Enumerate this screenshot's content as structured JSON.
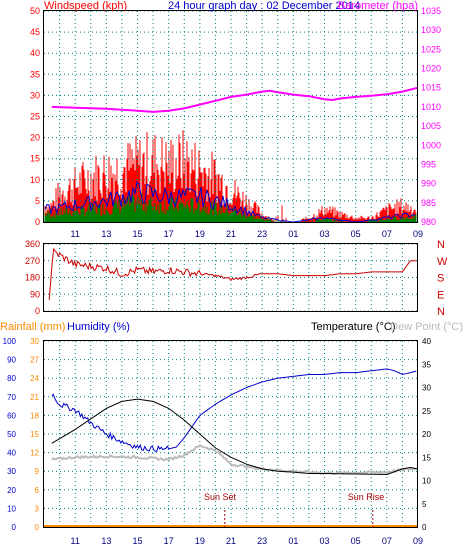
{
  "header": {
    "title": "24 hour graph day : 02 December 2014",
    "wind_label": "Windspeed (kph)",
    "baro_label": "Barometer (hpa)",
    "rain_label": "Rainfall (mm)",
    "hum_label": "Humidity (%)",
    "temp_label": "Temperature (°C)",
    "dew_label": "Dew Point (°C)"
  },
  "colors": {
    "wind": "#ff0000",
    "gust_bg": "#ff0000",
    "avg_wind": "#0000cc",
    "wind_low": "#008000",
    "baro": "#ff00ff",
    "wdir": "#cc0000",
    "temp": "#000000",
    "hum": "#0000cc",
    "dew": "#bbbbbb",
    "rain": "#ff8800",
    "grid": "#008080",
    "bg": "#ffffff"
  },
  "x_ticks": [
    "11",
    "13",
    "15",
    "17",
    "19",
    "21",
    "23",
    "01",
    "03",
    "05",
    "07",
    "09"
  ],
  "x_ticks_bottom": [
    "11",
    "13",
    "15",
    "17",
    "19",
    "21",
    "23",
    "01",
    "03",
    "05",
    "07",
    "09"
  ],
  "sun": {
    "set_label": "Sun Set",
    "set_x": "20.6",
    "rise_label": "Sun Rise",
    "rise_x": "06.1"
  },
  "chart_data": [
    {
      "type": "line",
      "title": "24 hour graph day : 02 December 2014",
      "x_range": [
        "09:00",
        "09:00"
      ],
      "y_left": {
        "label": "Windspeed (kph)",
        "range": [
          0,
          50
        ],
        "ticks": [
          0,
          5,
          10,
          15,
          20,
          25,
          30,
          35,
          40,
          45,
          50
        ]
      },
      "y_right": {
        "label": "Barometer (hpa)",
        "range": [
          980,
          1035
        ],
        "ticks": [
          980,
          985,
          990,
          995,
          1000,
          1005,
          1010,
          1015,
          1020,
          1025,
          1030,
          1035
        ]
      },
      "series": [
        {
          "name": "Barometer (hpa)",
          "axis": "right",
          "x": [
            "09:30",
            "11:00",
            "13:00",
            "15:00",
            "16:00",
            "17:00",
            "18:00",
            "19:00",
            "20:00",
            "21:00",
            "22:00",
            "23:00",
            "23:30",
            "00:00",
            "01:00",
            "02:00",
            "03:00",
            "03:30",
            "04:00",
            "05:00",
            "06:00",
            "07:00",
            "08:00",
            "09:00"
          ],
          "values": [
            1010.0,
            1009.8,
            1009.5,
            1009.0,
            1008.7,
            1009.0,
            1009.6,
            1010.6,
            1011.6,
            1012.6,
            1013.2,
            1014.0,
            1014.2,
            1013.8,
            1013.2,
            1012.8,
            1012.0,
            1011.8,
            1012.2,
            1012.6,
            1012.9,
            1013.3,
            1014.0,
            1015.0
          ]
        },
        {
          "name": "Windspeed (kph)",
          "axis": "left",
          "x": [
            "09:30",
            "10:00",
            "11:00",
            "12:00",
            "13:00",
            "14:00",
            "15:00",
            "16:00",
            "17:00",
            "18:00",
            "19:00",
            "20:00",
            "21:00",
            "22:00",
            "23:00",
            "00:00",
            "01:00",
            "02:00",
            "03:00",
            "04:00",
            "05:00",
            "06:00",
            "07:00",
            "08:00",
            "09:00"
          ],
          "values": [
            4,
            7,
            9,
            11,
            12,
            13,
            14,
            15,
            14,
            15,
            13,
            11,
            8,
            5,
            2,
            0,
            0,
            1,
            3,
            2,
            1,
            1,
            3,
            4,
            3
          ]
        },
        {
          "name": "Average windspeed (kph)",
          "axis": "left",
          "x": [
            "09:30",
            "11:00",
            "13:00",
            "15:00",
            "17:00",
            "19:00",
            "21:00",
            "23:00",
            "01:00",
            "03:00",
            "05:00",
            "07:00",
            "09:00"
          ],
          "values": [
            3,
            4,
            5,
            7,
            6,
            6,
            4,
            1,
            0,
            1,
            0,
            1,
            2
          ]
        }
      ]
    },
    {
      "type": "line",
      "y_left": {
        "range": [
          0,
          360
        ],
        "ticks": [
          0,
          90,
          180,
          270,
          360
        ]
      },
      "y_right_labels": [
        "N",
        "W",
        "S",
        "E",
        "N"
      ],
      "series": [
        {
          "name": "Wind direction",
          "x": [
            "09:20",
            "09:35",
            "10:00",
            "11:00",
            "12:00",
            "13:00",
            "14:00",
            "15:00",
            "16:00",
            "17:00",
            "18:00",
            "19:00",
            "20:00",
            "21:00",
            "22:00",
            "23:00",
            "00:00",
            "01:00",
            "02:00",
            "03:00",
            "04:00",
            "05:00",
            "06:00",
            "07:00",
            "08:00",
            "08:30",
            "09:00"
          ],
          "values": [
            60,
            320,
            300,
            250,
            240,
            230,
            200,
            220,
            210,
            220,
            210,
            200,
            190,
            170,
            180,
            200,
            200,
            190,
            190,
            190,
            200,
            200,
            210,
            210,
            210,
            270,
            270
          ]
        }
      ]
    },
    {
      "type": "line",
      "y_rain": {
        "label": "Rainfall (mm)",
        "range": [
          0,
          30
        ],
        "ticks": [
          0,
          3,
          6,
          9,
          12,
          15,
          18,
          21,
          24,
          27,
          30
        ]
      },
      "y_hum": {
        "label": "Humidity (%)",
        "range": [
          0,
          100
        ],
        "ticks": [
          0,
          10,
          20,
          30,
          40,
          50,
          60,
          70,
          80,
          90,
          100
        ]
      },
      "y_temp": {
        "label": "Temperature (°C)",
        "range": [
          0,
          40
        ],
        "ticks": [
          0,
          5,
          10,
          15,
          20,
          25,
          30,
          35,
          40
        ]
      },
      "series": [
        {
          "name": "Temperature (°C)",
          "axis": "temp",
          "x": [
            "09:30",
            "11:00",
            "13:00",
            "14:00",
            "15:00",
            "16:00",
            "17:00",
            "18:00",
            "19:00",
            "20:00",
            "21:00",
            "22:00",
            "23:00",
            "00:00",
            "01:00",
            "02:00",
            "03:00",
            "05:00",
            "07:00",
            "08:00",
            "08:30",
            "09:00"
          ],
          "values": [
            18.0,
            21.0,
            25.5,
            27.0,
            27.5,
            27.0,
            25.5,
            23.0,
            20.0,
            17.0,
            15.0,
            13.5,
            12.5,
            12.0,
            11.8,
            11.5,
            11.5,
            11.4,
            11.3,
            12.5,
            12.8,
            12.5
          ]
        },
        {
          "name": "Humidity (%)",
          "axis": "hum",
          "x": [
            "09:30",
            "10:00",
            "11:00",
            "12:00",
            "13:00",
            "14:00",
            "15:00",
            "16:00",
            "17:00",
            "17:30",
            "18:00",
            "19:00",
            "20:00",
            "21:00",
            "22:00",
            "23:00",
            "00:00",
            "01:00",
            "02:00",
            "03:00",
            "04:00",
            "05:00",
            "06:00",
            "07:00",
            "07:30",
            "08:00",
            "09:00"
          ],
          "values": [
            72,
            66,
            63,
            56,
            50,
            46,
            43,
            42,
            42,
            43,
            48,
            60,
            66,
            71,
            75,
            78,
            80,
            81,
            82,
            82,
            83,
            83,
            84,
            85,
            84,
            82,
            84
          ]
        },
        {
          "name": "Dew Point (°C)",
          "axis": "temp",
          "x": [
            "09:30",
            "11:00",
            "13:00",
            "15:00",
            "17:00",
            "18:00",
            "19:00",
            "20:00",
            "21:00",
            "23:00",
            "01:00",
            "03:00",
            "05:00",
            "07:00",
            "08:00",
            "09:00"
          ],
          "values": [
            14.5,
            15.0,
            15.2,
            15.0,
            14.5,
            15.5,
            17.5,
            16.5,
            13.5,
            12.5,
            12.0,
            11.6,
            11.7,
            11.8,
            12.3,
            12.6
          ]
        },
        {
          "name": "Rainfall (mm)",
          "axis": "rain",
          "x": [
            "09:00",
            "09:00"
          ],
          "values": [
            0,
            0
          ]
        }
      ]
    }
  ]
}
